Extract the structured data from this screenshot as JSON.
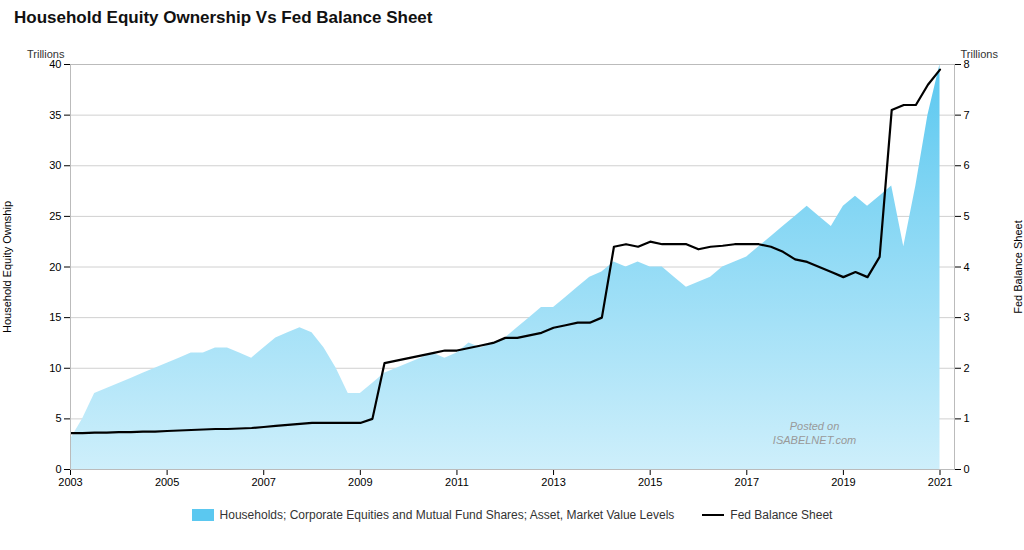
{
  "chart_data": {
    "type": "line",
    "title": "Household Equity Ownership Vs Fed Balance Sheet",
    "ylabel": "Household Equity Ownship",
    "y2label": "Fed Balance Sheet",
    "annotations": [
      {
        "text": "Trillions",
        "axis": "y"
      },
      {
        "text": "Trillions",
        "axis": "y2"
      },
      {
        "text": "Posted on"
      },
      {
        "text": "ISABELNET.com"
      }
    ],
    "x": [
      2003.0,
      2003.25,
      2003.5,
      2003.75,
      2004.0,
      2004.25,
      2004.5,
      2004.75,
      2005.0,
      2005.25,
      2005.5,
      2005.75,
      2006.0,
      2006.25,
      2006.5,
      2006.75,
      2007.0,
      2007.25,
      2007.5,
      2007.75,
      2008.0,
      2008.25,
      2008.5,
      2008.75,
      2009.0,
      2009.25,
      2009.5,
      2009.75,
      2010.0,
      2010.25,
      2010.5,
      2010.75,
      2011.0,
      2011.25,
      2011.5,
      2011.75,
      2012.0,
      2012.25,
      2012.5,
      2012.75,
      2013.0,
      2013.25,
      2013.5,
      2013.75,
      2014.0,
      2014.25,
      2014.5,
      2014.75,
      2015.0,
      2015.25,
      2015.5,
      2015.75,
      2016.0,
      2016.25,
      2016.5,
      2016.75,
      2017.0,
      2017.25,
      2017.5,
      2017.75,
      2018.0,
      2018.25,
      2018.5,
      2018.75,
      2019.0,
      2019.25,
      2019.5,
      2019.75,
      2020.0,
      2020.25,
      2020.5,
      2020.75,
      2021.0
    ],
    "series": [
      {
        "name": "Households; Corporate Equities and Mutual Fund Shares; Asset, Market Value Levels",
        "type": "area",
        "color": "#5bc8f0",
        "values": [
          3.0,
          5.0,
          7.5,
          8.0,
          8.5,
          9.0,
          9.5,
          10.0,
          10.5,
          11.0,
          11.5,
          11.5,
          12.0,
          12.0,
          11.5,
          11.0,
          12.0,
          13.0,
          13.5,
          14.0,
          13.5,
          12.0,
          10.0,
          7.5,
          7.5,
          8.5,
          9.5,
          10.0,
          10.5,
          11.0,
          11.5,
          11.0,
          11.5,
          12.5,
          12.0,
          12.5,
          13.0,
          14.0,
          15.0,
          16.0,
          16.0,
          17.0,
          18.0,
          19.0,
          19.5,
          20.5,
          20.0,
          20.5,
          20.0,
          20.0,
          19.0,
          18.0,
          18.5,
          19.0,
          20.0,
          20.5,
          21.0,
          22.0,
          23.0,
          24.0,
          25.0,
          26.0,
          25.0,
          24.0,
          26.0,
          27.0,
          26.0,
          27.0,
          28.0,
          22.0,
          28.0,
          35.0,
          40.0
        ]
      },
      {
        "name": "Fed Balance Sheet",
        "type": "line",
        "color": "#000000",
        "axis": "y2",
        "values": [
          0.72,
          0.72,
          0.73,
          0.73,
          0.74,
          0.74,
          0.75,
          0.75,
          0.76,
          0.77,
          0.78,
          0.79,
          0.8,
          0.8,
          0.81,
          0.82,
          0.84,
          0.86,
          0.88,
          0.9,
          0.92,
          0.92,
          0.92,
          0.92,
          0.92,
          1.0,
          2.1,
          2.15,
          2.2,
          2.25,
          2.3,
          2.35,
          2.35,
          2.4,
          2.45,
          2.5,
          2.6,
          2.6,
          2.65,
          2.7,
          2.8,
          2.85,
          2.9,
          2.9,
          3.0,
          4.4,
          4.45,
          4.4,
          4.5,
          4.45,
          4.45,
          4.45,
          4.35,
          4.4,
          4.42,
          4.45,
          4.45,
          4.45,
          4.4,
          4.3,
          4.15,
          4.1,
          4.0,
          3.9,
          3.8,
          3.9,
          3.8,
          4.2,
          7.1,
          7.2,
          7.2,
          7.6,
          7.9
        ]
      }
    ],
    "xlim": [
      2003,
      2021.3
    ],
    "xticks": [
      2003,
      2005,
      2007,
      2009,
      2011,
      2013,
      2015,
      2017,
      2019,
      2021
    ],
    "ylim": [
      0,
      40
    ],
    "yticks": [
      0,
      5,
      10,
      15,
      20,
      25,
      30,
      35,
      40
    ],
    "y2lim": [
      0,
      8
    ],
    "y2ticks": [
      0,
      1,
      2,
      3,
      4,
      5,
      6,
      7,
      8
    ],
    "grid": true,
    "legend": "bottom"
  }
}
